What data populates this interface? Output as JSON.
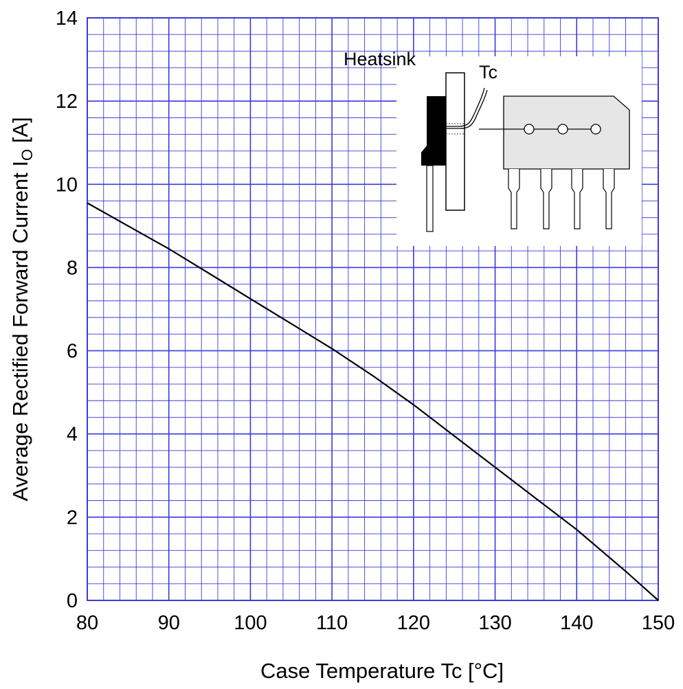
{
  "chart_data": {
    "type": "line",
    "xlabel": "Case Temperature  Tc  [°C]",
    "ylabel_main": "Average Rectified Forward Current  I",
    "ylabel_sub": "O",
    "ylabel_unit": "  [A]",
    "xlim": [
      80,
      150
    ],
    "ylim": [
      0,
      14
    ],
    "x_major_ticks": [
      80,
      90,
      100,
      110,
      120,
      130,
      140,
      150
    ],
    "y_major_ticks": [
      0,
      2,
      4,
      6,
      8,
      10,
      12,
      14
    ],
    "x_minor_step": 2,
    "y_minor_step": 0.4,
    "grid": true,
    "grid_color": "#3a3ad8",
    "line_color": "#000000",
    "series": [
      {
        "x": [
          80,
          85,
          90,
          95,
          100,
          105,
          110,
          115,
          120,
          125,
          130,
          135,
          140,
          143,
          146,
          148,
          150
        ],
        "y": [
          9.55,
          9.0,
          8.45,
          7.85,
          7.25,
          6.65,
          6.05,
          5.4,
          4.7,
          3.95,
          3.2,
          2.45,
          1.7,
          1.2,
          0.7,
          0.35,
          0.0
        ]
      }
    ],
    "inset": {
      "heatsink_label": "Heatsink",
      "tc_label": "Tc"
    }
  }
}
